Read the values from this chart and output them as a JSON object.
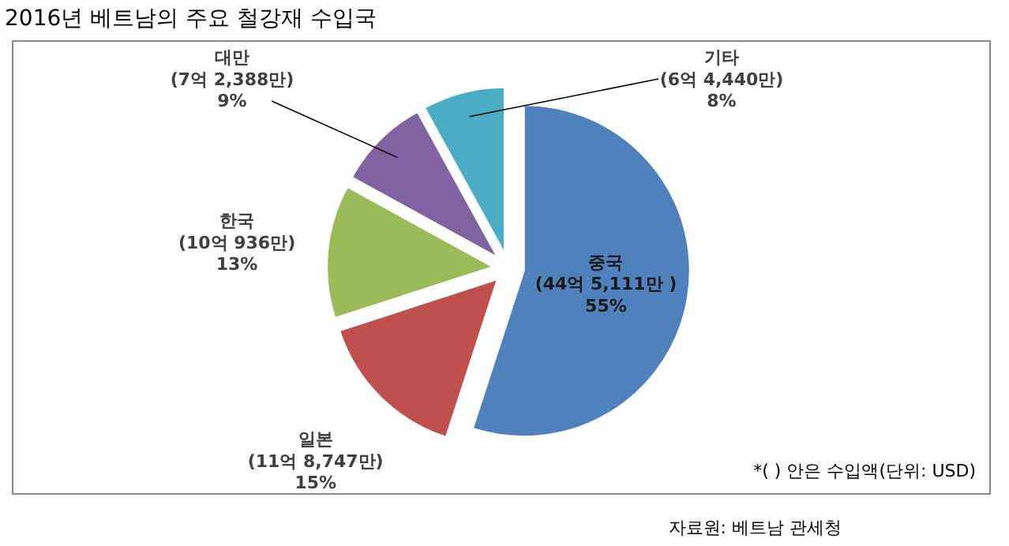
{
  "chart_data": {
    "type": "pie",
    "title": "2016년 베트남의 주요 철강재 수입국",
    "categories": [
      "중국",
      "일본",
      "한국",
      "대만",
      "기타"
    ],
    "values": [
      55,
      15,
      13,
      9,
      8
    ],
    "value_labels": [
      "(44억 5,111만 )\n55%",
      "(11억 8,747만)\n15%",
      "(10억 936만)\n13%",
      "(7억 2,388만)\n9%",
      "(6억 4,440만)\n8%"
    ],
    "colors": [
      "#4f81bd",
      "#c0504d",
      "#9bbb59",
      "#8064a2",
      "#4bacc6"
    ],
    "annotations": [
      "*(   ) 안은 수입액(단위: USD)",
      "자료원: 베트남 관세청"
    ]
  }
}
